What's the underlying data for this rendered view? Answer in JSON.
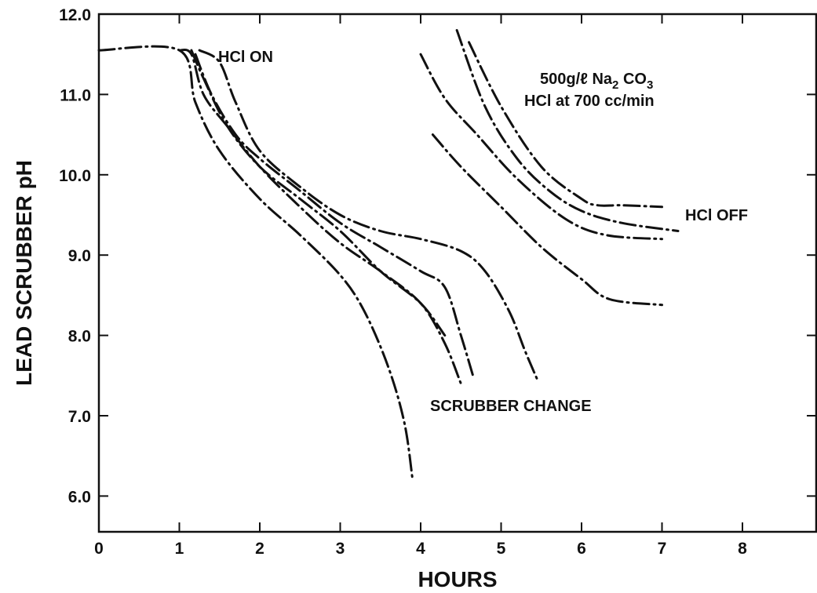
{
  "chart_data": {
    "type": "line",
    "xlabel": "HOURS",
    "ylabel": "LEAD SCRUBBER pH",
    "xlim": [
      0,
      9
    ],
    "ylim": [
      5.5,
      12.0
    ],
    "x_ticks": [
      "0",
      "1",
      "2",
      "3",
      "4",
      "5",
      "6",
      "7",
      "8"
    ],
    "y_ticks": [
      "6.0",
      "7.0",
      "8.0",
      "9.0",
      "10.0",
      "11.0",
      "12.0"
    ],
    "grid": false,
    "legend": "none",
    "annotations": [
      {
        "id": "hcl_on",
        "text": "HCl ON"
      },
      {
        "id": "conditions_line1",
        "text": "500g/ℓ Na",
        "sub": "2",
        "after": " CO",
        "sub2": "3"
      },
      {
        "id": "conditions_line2",
        "text": "HCl at 700 cc/min"
      },
      {
        "id": "hcl_off",
        "text": "HCl OFF"
      },
      {
        "id": "scrubber_change",
        "text": "SCRUBBER CHANGE"
      }
    ],
    "series": [
      {
        "x": [
          0.0,
          1.0,
          1.2,
          1.5,
          2.0,
          2.5,
          3.0,
          3.3,
          3.6,
          3.8,
          3.9
        ],
        "y": [
          11.55,
          11.55,
          10.9,
          10.3,
          9.7,
          9.25,
          8.75,
          8.3,
          7.6,
          6.9,
          6.2
        ]
      },
      {
        "x": [
          1.0,
          1.15,
          1.3,
          1.6,
          2.0,
          2.5,
          3.0,
          3.5,
          4.0,
          4.3,
          4.5
        ],
        "y": [
          11.55,
          11.5,
          11.0,
          10.6,
          10.1,
          9.6,
          9.15,
          8.8,
          8.4,
          7.9,
          7.4
        ]
      },
      {
        "x": [
          1.15,
          1.3,
          1.6,
          2.0,
          2.5,
          3.0,
          3.5,
          4.0,
          4.3
        ],
        "y": [
          11.55,
          11.2,
          10.6,
          10.1,
          9.7,
          9.3,
          8.8,
          8.4,
          8.0
        ]
      },
      {
        "x": [
          1.2,
          1.4,
          1.7,
          2.0,
          2.5,
          3.0,
          3.5,
          4.0,
          4.3,
          4.5,
          4.65
        ],
        "y": [
          11.5,
          11.0,
          10.5,
          10.2,
          9.8,
          9.4,
          9.1,
          8.8,
          8.6,
          8.0,
          7.5
        ]
      },
      {
        "x": [
          1.25,
          1.5,
          1.7,
          2.0,
          2.5,
          3.0,
          3.5,
          4.0,
          4.5,
          4.8,
          5.1,
          5.3,
          5.45
        ],
        "y": [
          11.55,
          11.4,
          10.9,
          10.3,
          9.85,
          9.5,
          9.3,
          9.2,
          9.05,
          8.8,
          8.3,
          7.8,
          7.45
        ]
      },
      {
        "x": [
          4.15,
          4.5,
          5.0,
          5.5,
          6.0,
          6.35,
          7.0
        ],
        "y": [
          10.5,
          10.1,
          9.6,
          9.1,
          8.7,
          8.45,
          8.38
        ]
      },
      {
        "x": [
          4.0,
          4.3,
          4.7,
          5.2,
          5.8,
          6.3,
          7.0
        ],
        "y": [
          11.5,
          10.95,
          10.5,
          9.95,
          9.45,
          9.25,
          9.2
        ]
      },
      {
        "x": [
          4.45,
          4.8,
          5.2,
          5.6,
          6.0,
          6.5,
          7.2
        ],
        "y": [
          11.8,
          10.85,
          10.2,
          9.8,
          9.55,
          9.4,
          9.3
        ]
      },
      {
        "x": [
          4.6,
          5.0,
          5.5,
          6.0,
          6.2,
          6.5,
          7.0
        ],
        "y": [
          11.65,
          10.85,
          10.1,
          9.7,
          9.62,
          9.62,
          9.6
        ]
      }
    ]
  }
}
